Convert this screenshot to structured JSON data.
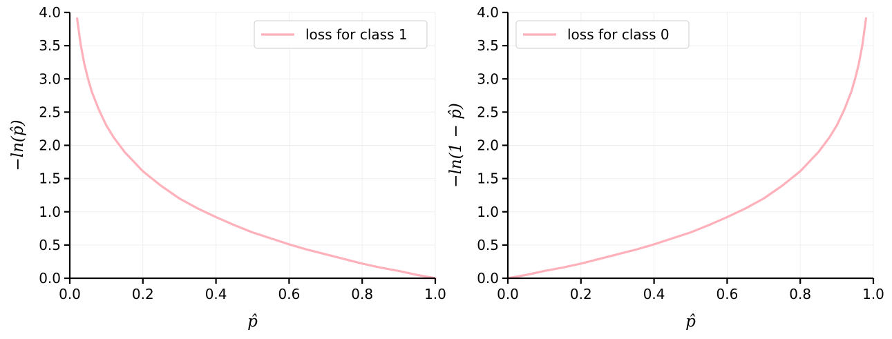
{
  "chart_data": [
    {
      "type": "line",
      "xlabel": "p̂",
      "ylabel": "−ln(p̂)",
      "xlim": [
        0.0,
        1.0
      ],
      "ylim": [
        0.0,
        4.0
      ],
      "xticks": [
        "0.0",
        "0.2",
        "0.4",
        "0.6",
        "0.8",
        "1.0"
      ],
      "yticks": [
        "0.0",
        "0.5",
        "1.0",
        "1.5",
        "2.0",
        "2.5",
        "3.0",
        "3.5",
        "4.0"
      ],
      "grid": true,
      "legend_position": "top-right",
      "series": [
        {
          "name": "loss for class 1",
          "color": "#ffb1bb",
          "x": [
            0.02,
            0.03,
            0.04,
            0.05,
            0.06,
            0.08,
            0.1,
            0.12,
            0.15,
            0.2,
            0.25,
            0.3,
            0.35,
            0.4,
            0.45,
            0.5,
            0.55,
            0.6,
            0.65,
            0.7,
            0.75,
            0.8,
            0.85,
            0.9,
            0.95,
            1.0
          ],
          "y": [
            3.91,
            3.51,
            3.22,
            3.0,
            2.81,
            2.53,
            2.3,
            2.12,
            1.9,
            1.61,
            1.39,
            1.2,
            1.05,
            0.92,
            0.8,
            0.69,
            0.6,
            0.51,
            0.43,
            0.36,
            0.29,
            0.22,
            0.16,
            0.11,
            0.05,
            0.0
          ]
        }
      ]
    },
    {
      "type": "line",
      "xlabel": "p̂",
      "ylabel": "−ln(1 − p̂)",
      "xlim": [
        0.0,
        1.0
      ],
      "ylim": [
        0.0,
        4.0
      ],
      "xticks": [
        "0.0",
        "0.2",
        "0.4",
        "0.6",
        "0.8",
        "1.0"
      ],
      "yticks": [
        "0.0",
        "0.5",
        "1.0",
        "1.5",
        "2.0",
        "2.5",
        "3.0",
        "3.5",
        "4.0"
      ],
      "grid": true,
      "legend_position": "top-left",
      "series": [
        {
          "name": "loss for class 0",
          "color": "#ffb1bb",
          "x": [
            0.0,
            0.05,
            0.1,
            0.15,
            0.2,
            0.25,
            0.3,
            0.35,
            0.4,
            0.45,
            0.5,
            0.55,
            0.6,
            0.65,
            0.7,
            0.75,
            0.8,
            0.85,
            0.88,
            0.9,
            0.92,
            0.94,
            0.95,
            0.96,
            0.97,
            0.98
          ],
          "y": [
            0.0,
            0.05,
            0.11,
            0.16,
            0.22,
            0.29,
            0.36,
            0.43,
            0.51,
            0.6,
            0.69,
            0.8,
            0.92,
            1.05,
            1.2,
            1.39,
            1.61,
            1.9,
            2.12,
            2.3,
            2.53,
            2.81,
            3.0,
            3.22,
            3.51,
            3.91
          ]
        }
      ]
    }
  ]
}
